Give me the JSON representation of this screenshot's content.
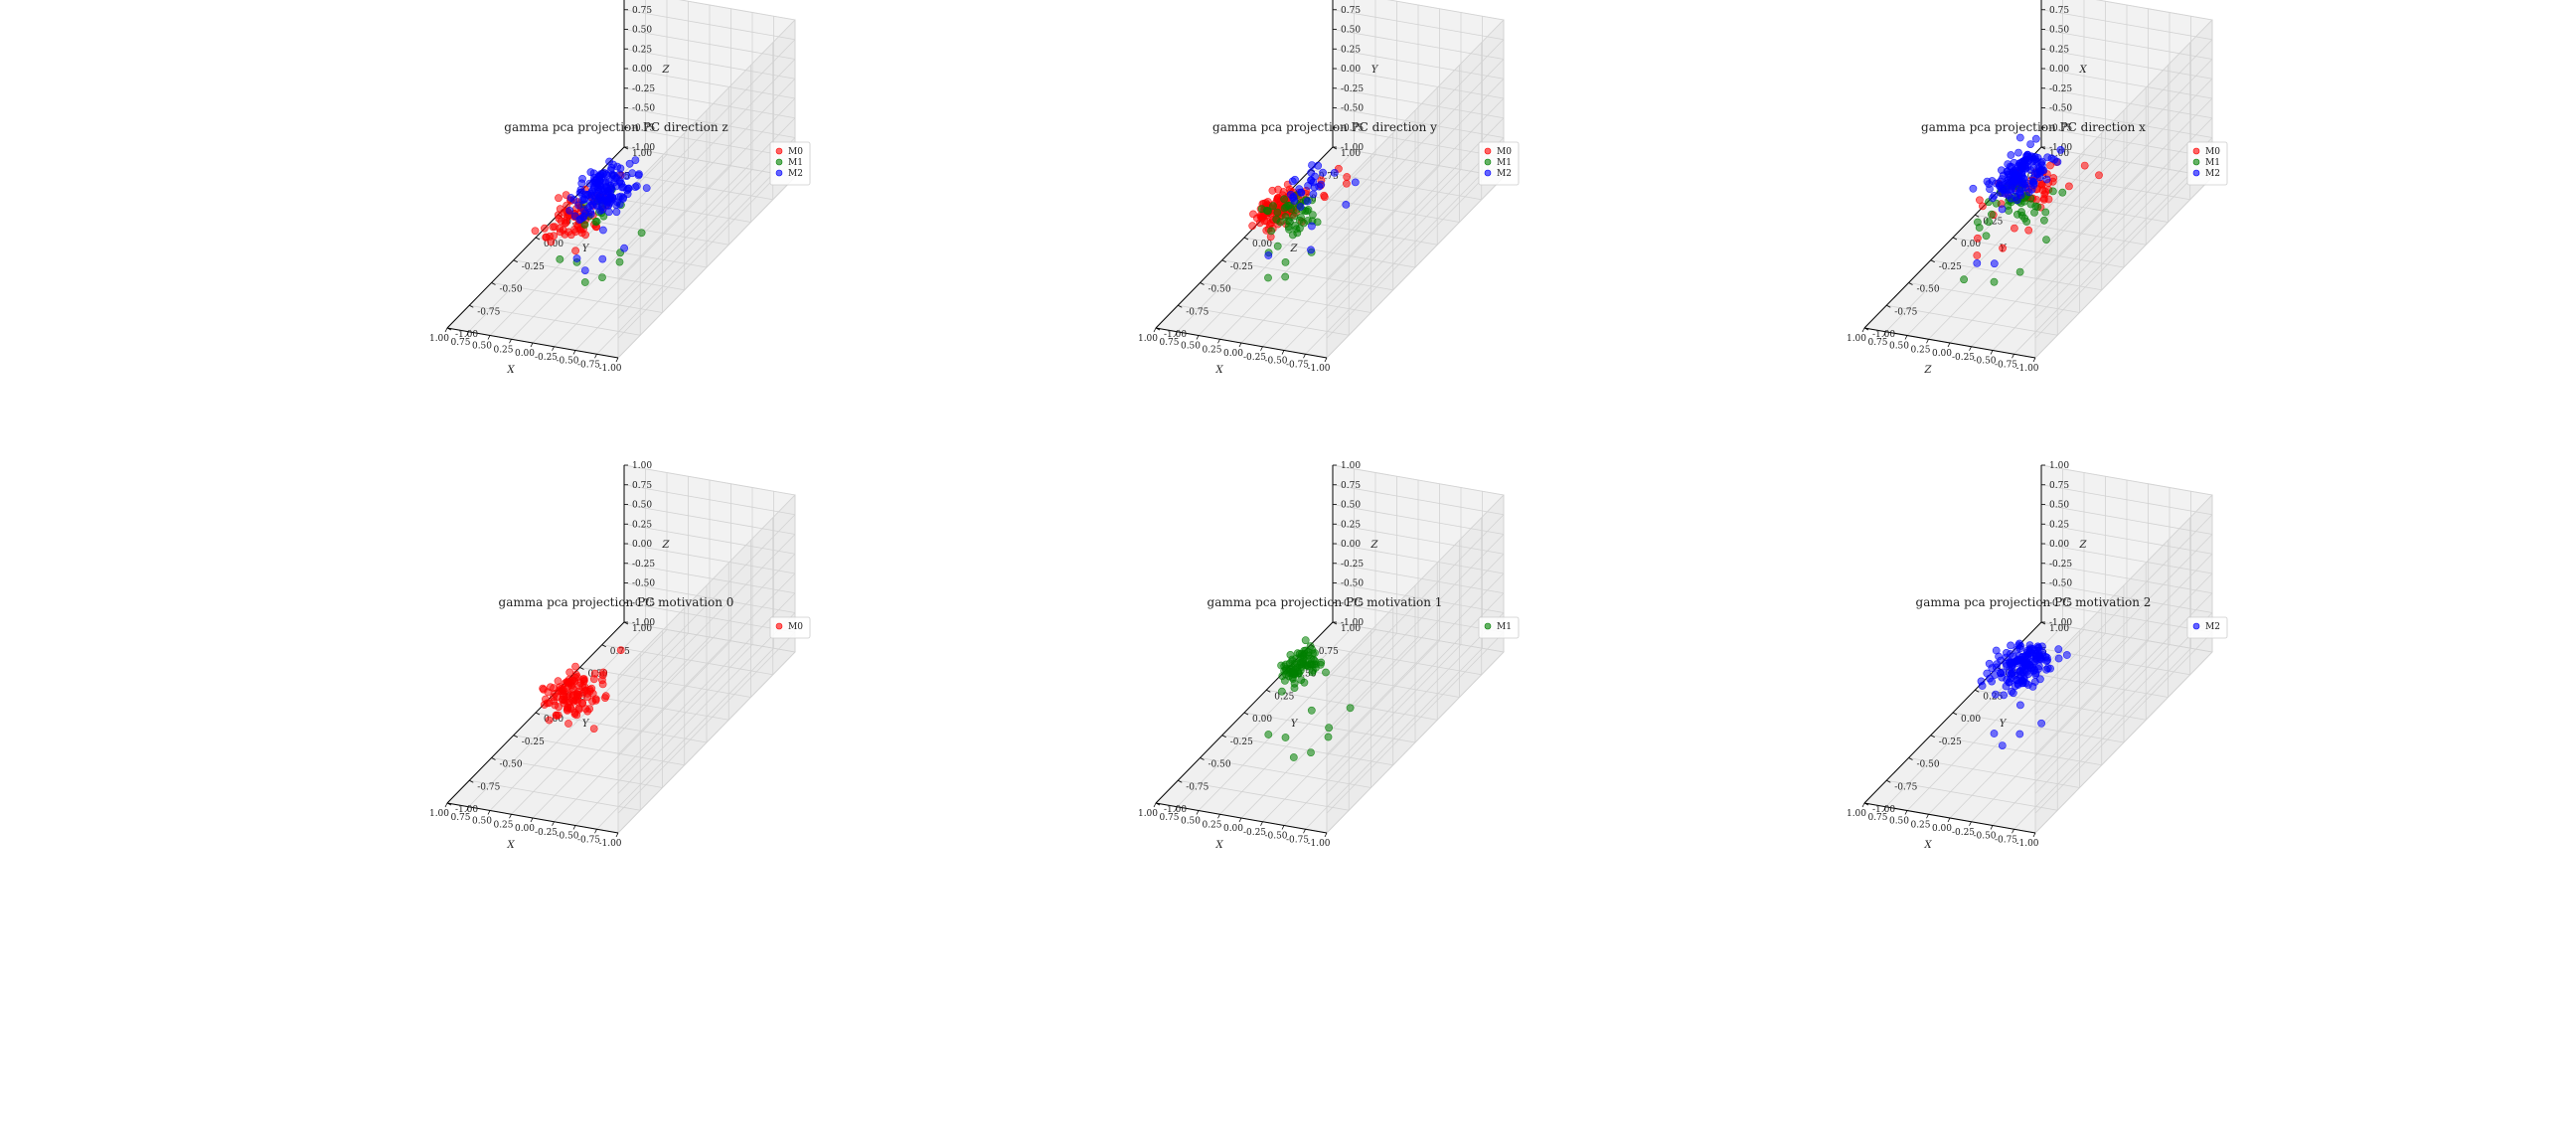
{
  "figure": {
    "background": "#ffffff"
  },
  "ticks": [
    "-1.00",
    "-0.75",
    "-0.50",
    "-0.25",
    "0.00",
    "0.25",
    "0.50",
    "0.75",
    "1.00"
  ],
  "series_colors": {
    "M0": "#ff0000",
    "M1": "#008000",
    "M2": "#0000ff"
  },
  "chart_data": [
    {
      "type": "scatter3d",
      "title": "gamma pca projection PC direction z",
      "xlabel": "X",
      "ylabel": "Y",
      "zlabel": "Z",
      "xlim": [
        -1,
        1
      ],
      "ylim": [
        -1,
        1
      ],
      "zlim": [
        -1,
        1
      ],
      "grid": true,
      "legend_position": "top-right",
      "series": [
        {
          "name": "M0",
          "color": "#ff0000",
          "cluster": {
            "center": [
              0.35,
              -0.2,
              -0.4
            ],
            "spread": [
              0.13,
              0.1,
              0.1
            ],
            "n": 75
          },
          "points": [
            [
              -0.15,
              -0.35,
              0.1
            ],
            [
              -0.2,
              -0.4,
              0.05
            ],
            [
              -0.05,
              -0.25,
              0.0
            ],
            [
              0.1,
              -0.3,
              -0.2
            ],
            [
              -0.1,
              -0.1,
              0.12
            ]
          ]
        },
        {
          "name": "M1",
          "color": "#008000",
          "cluster": {
            "center": [
              0.1,
              -0.2,
              -0.3
            ],
            "spread": [
              0.1,
              0.1,
              0.08
            ],
            "n": 12
          },
          "points": [
            [
              -0.5,
              -0.5,
              -0.45
            ],
            [
              -0.4,
              -0.6,
              -0.55
            ],
            [
              -0.3,
              -0.3,
              -0.6
            ],
            [
              -0.2,
              -0.6,
              -0.65
            ],
            [
              -0.55,
              -0.3,
              -0.3
            ],
            [
              0.0,
              -0.5,
              -0.55
            ],
            [
              -0.1,
              -0.2,
              0.05
            ],
            [
              0.2,
              -0.5,
              -0.55
            ]
          ]
        },
        {
          "name": "M2",
          "color": "#0000ff",
          "cluster": {
            "center": [
              0.2,
              0.0,
              -0.25
            ],
            "spread": [
              0.14,
              0.12,
              0.08
            ],
            "n": 150
          },
          "points": [
            [
              -0.3,
              -0.5,
              -0.45
            ],
            [
              -0.2,
              -0.6,
              -0.5
            ],
            [
              -0.45,
              -0.4,
              -0.4
            ],
            [
              0.0,
              -0.5,
              -0.5
            ],
            [
              -0.1,
              -0.3,
              -0.35
            ]
          ]
        }
      ]
    },
    {
      "type": "scatter3d",
      "title": "gamma pca projection PC direction y",
      "xlabel": "X",
      "ylabel": "Z",
      "zlabel": "Y",
      "xlim": [
        -1,
        1
      ],
      "ylim": [
        -1,
        1
      ],
      "zlim": [
        -1,
        1
      ],
      "grid": true,
      "legend_position": "top-right",
      "series": [
        {
          "name": "M0",
          "color": "#ff0000",
          "cluster": {
            "center": [
              0.4,
              -0.2,
              -0.3
            ],
            "spread": [
              0.1,
              0.1,
              0.08
            ],
            "n": 110
          },
          "points": [
            [
              -0.3,
              -0.1,
              0.05
            ],
            [
              -0.2,
              0.0,
              0.0
            ],
            [
              -0.1,
              -0.2,
              0.1
            ],
            [
              0.0,
              0.1,
              -0.05
            ],
            [
              -0.25,
              -0.3,
              0.1
            ],
            [
              0.1,
              0.0,
              -0.1
            ]
          ]
        },
        {
          "name": "M1",
          "color": "#008000",
          "cluster": {
            "center": [
              0.2,
              -0.2,
              -0.35
            ],
            "spread": [
              0.12,
              0.1,
              0.1
            ],
            "n": 45
          },
          "points": [
            [
              0.0,
              -0.5,
              -0.55
            ],
            [
              -0.1,
              -0.6,
              -0.6
            ],
            [
              0.1,
              -0.6,
              -0.65
            ],
            [
              -0.2,
              -0.4,
              -0.5
            ],
            [
              0.3,
              -0.4,
              -0.6
            ]
          ]
        },
        {
          "name": "M2",
          "color": "#0000ff",
          "cluster": {
            "center": [
              0.3,
              0.0,
              -0.2
            ],
            "spread": [
              0.1,
              0.1,
              0.08
            ],
            "n": 25
          },
          "points": [
            [
              -0.5,
              -0.3,
              0.05
            ],
            [
              -0.4,
              -0.6,
              -0.2
            ],
            [
              -0.1,
              -0.3,
              -0.3
            ],
            [
              0.2,
              -0.5,
              -0.5
            ],
            [
              -0.3,
              0.0,
              -0.05
            ]
          ]
        }
      ]
    },
    {
      "type": "scatter3d",
      "title": "gamma pca projection PC direction x",
      "xlabel": "Z",
      "ylabel": "Y",
      "zlabel": "X",
      "xlim": [
        -1,
        1
      ],
      "ylim": [
        -1,
        1
      ],
      "zlim": [
        -1,
        1
      ],
      "grid": true,
      "legend_position": "top-right",
      "series": [
        {
          "name": "M0",
          "color": "#ff0000",
          "cluster": {
            "center": [
              0.0,
              -0.1,
              -0.1
            ],
            "spread": [
              0.18,
              0.15,
              0.12
            ],
            "n": 55
          },
          "points": [
            [
              -0.3,
              -0.4,
              -0.2
            ],
            [
              0.2,
              -0.5,
              -0.5
            ],
            [
              0.4,
              -0.3,
              -0.55
            ],
            [
              -0.1,
              -0.5,
              -0.35
            ]
          ]
        },
        {
          "name": "M1",
          "color": "#008000",
          "cluster": {
            "center": [
              0.05,
              -0.2,
              -0.2
            ],
            "spread": [
              0.14,
              0.14,
              0.14
            ],
            "n": 40
          },
          "points": [
            [
              -0.2,
              -0.4,
              -0.75
            ],
            [
              0.0,
              -0.5,
              -0.8
            ],
            [
              0.25,
              -0.6,
              -0.7
            ],
            [
              -0.3,
              -0.2,
              -0.55
            ],
            [
              0.3,
              -0.3,
              -0.5
            ]
          ]
        },
        {
          "name": "M2",
          "color": "#0000ff",
          "cluster": {
            "center": [
              0.25,
              0.05,
              -0.1
            ],
            "spread": [
              0.12,
              0.12,
              0.1
            ],
            "n": 150
          },
          "points": [
            [
              0.5,
              0.2,
              -0.3
            ],
            [
              0.6,
              0.1,
              -0.35
            ],
            [
              0.1,
              -0.4,
              -0.7
            ],
            [
              0.2,
              -0.5,
              -0.6
            ]
          ]
        }
      ]
    },
    {
      "type": "scatter3d",
      "title": "gamma pca projection PC motivation 0",
      "xlabel": "X",
      "ylabel": "Y",
      "zlabel": "Z",
      "xlim": [
        -1,
        1
      ],
      "ylim": [
        -1,
        1
      ],
      "zlim": [
        -1,
        1
      ],
      "grid": true,
      "legend_position": "top-right",
      "series": [
        {
          "name": "M0",
          "color": "#ff0000",
          "cluster": {
            "center": [
              0.35,
              -0.2,
              -0.4
            ],
            "spread": [
              0.13,
              0.1,
              0.1
            ],
            "n": 110
          },
          "points": [
            [
              -0.15,
              -0.35,
              0.1
            ],
            [
              -0.2,
              -0.4,
              0.05
            ],
            [
              -0.05,
              -0.25,
              0.0
            ],
            [
              0.1,
              -0.3,
              -0.2
            ],
            [
              -0.1,
              -0.1,
              0.12
            ],
            [
              0.0,
              -0.4,
              -0.3
            ],
            [
              -0.2,
              -0.5,
              -0.4
            ]
          ]
        }
      ]
    },
    {
      "type": "scatter3d",
      "title": "gamma pca projection PC motivation 1",
      "xlabel": "X",
      "ylabel": "Y",
      "zlabel": "Z",
      "xlim": [
        -1,
        1
      ],
      "ylim": [
        -1,
        1
      ],
      "zlim": [
        -1,
        1
      ],
      "grid": true,
      "legend_position": "top-right",
      "series": [
        {
          "name": "M1",
          "color": "#008000",
          "cluster": {
            "center": [
              0.35,
              0.0,
              -0.3
            ],
            "spread": [
              0.1,
              0.08,
              0.06
            ],
            "n": 80
          },
          "points": [
            [
              -0.5,
              -0.5,
              -0.45
            ],
            [
              -0.4,
              -0.6,
              -0.55
            ],
            [
              -0.3,
              -0.3,
              -0.6
            ],
            [
              -0.2,
              -0.6,
              -0.65
            ],
            [
              -0.55,
              -0.3,
              -0.3
            ],
            [
              0.0,
              -0.5,
              -0.55
            ],
            [
              -0.1,
              -0.2,
              0.05
            ],
            [
              0.2,
              -0.5,
              -0.55
            ],
            [
              0.1,
              -0.1,
              -0.2
            ],
            [
              -0.15,
              -0.35,
              -0.35
            ]
          ]
        }
      ]
    },
    {
      "type": "scatter3d",
      "title": "gamma pca projection PC motivation 2",
      "xlabel": "X",
      "ylabel": "Y",
      "zlabel": "Z",
      "xlim": [
        -1,
        1
      ],
      "ylim": [
        -1,
        1
      ],
      "zlim": [
        -1,
        1
      ],
      "grid": true,
      "legend_position": "top-right",
      "series": [
        {
          "name": "M2",
          "color": "#0000ff",
          "cluster": {
            "center": [
              0.2,
              0.0,
              -0.25
            ],
            "spread": [
              0.14,
              0.12,
              0.08
            ],
            "n": 160
          },
          "points": [
            [
              -0.3,
              -0.5,
              -0.45
            ],
            [
              -0.2,
              -0.6,
              -0.5
            ],
            [
              -0.45,
              -0.4,
              -0.4
            ],
            [
              0.0,
              -0.5,
              -0.5
            ],
            [
              -0.1,
              -0.3,
              -0.35
            ],
            [
              -0.2,
              -0.1,
              0.0
            ]
          ]
        }
      ]
    }
  ]
}
